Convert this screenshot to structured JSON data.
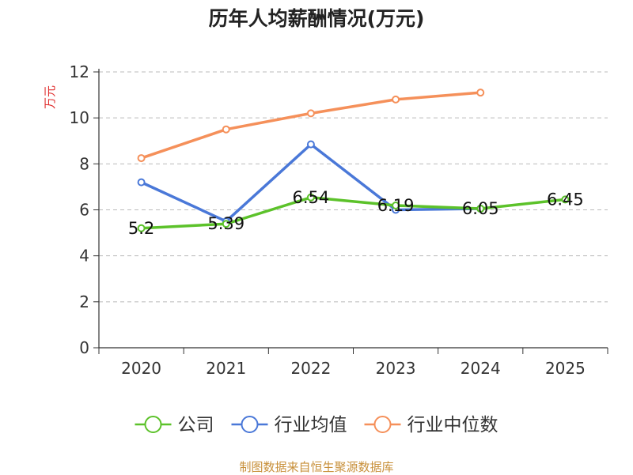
{
  "source_note": "制图数据来自恒生聚源数据库",
  "colors": {
    "company": "#5cc22a",
    "industry_avg": "#4a78d8",
    "industry_median": "#f5905a",
    "grid": "#bbbbbb",
    "axis": "#333333",
    "ylabel": "#e03030",
    "source": "#c8903a"
  },
  "chart_data": {
    "type": "line",
    "title": "历年人均薪酬情况(万元)",
    "ylabel": "万元",
    "xlabel": "",
    "categories": [
      "2020",
      "2021",
      "2022",
      "2023",
      "2024",
      "2025"
    ],
    "yticks": [
      "0",
      "2",
      "4",
      "6",
      "8",
      "10",
      "12"
    ],
    "ylim": [
      0,
      12
    ],
    "grid": true,
    "legend_position": "bottom",
    "series": [
      {
        "name": "公司",
        "values": [
          5.2,
          5.39,
          6.54,
          6.19,
          6.05,
          6.45
        ],
        "labels": [
          "5.2",
          "5.39",
          "6.54",
          "6.19",
          "6.05",
          "6.45"
        ]
      },
      {
        "name": "行业均值",
        "values": [
          7.2,
          5.5,
          8.85,
          6.0,
          6.05,
          null
        ]
      },
      {
        "name": "行业中位数",
        "values": [
          8.25,
          9.5,
          10.2,
          10.8,
          11.1,
          null
        ]
      }
    ]
  }
}
